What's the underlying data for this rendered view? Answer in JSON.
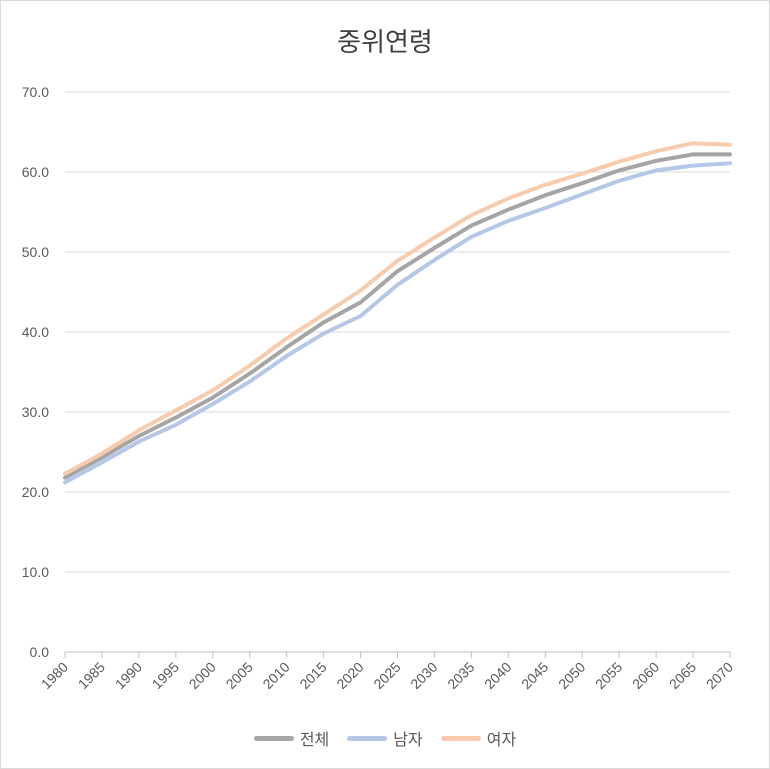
{
  "chart_data": {
    "type": "line",
    "title": "중위연령",
    "xlabel": "",
    "ylabel": "",
    "ylim": [
      0,
      70
    ],
    "xlim": [
      1980,
      2070
    ],
    "y_ticks": [
      "0.0",
      "10.0",
      "20.0",
      "30.0",
      "40.0",
      "50.0",
      "60.0",
      "70.0"
    ],
    "x_ticks": [
      "1980",
      "1985",
      "1990",
      "1995",
      "2000",
      "2005",
      "2010",
      "2015",
      "2020",
      "2025",
      "2030",
      "2035",
      "2040",
      "2045",
      "2050",
      "2055",
      "2060",
      "2065",
      "2070"
    ],
    "grid": "horizontal",
    "legend_position": "bottom",
    "x": [
      1980,
      1985,
      1990,
      1995,
      2000,
      2005,
      2010,
      2015,
      2020,
      2025,
      2030,
      2035,
      2040,
      2045,
      2050,
      2055,
      2060,
      2065,
      2070
    ],
    "series": [
      {
        "name": "전체",
        "color": "#a5a5a5",
        "values": [
          21.8,
          24.3,
          27.0,
          29.3,
          31.8,
          34.8,
          38.1,
          41.2,
          43.7,
          47.6,
          50.5,
          53.3,
          55.3,
          57.1,
          58.6,
          60.2,
          61.4,
          62.2,
          62.2
        ]
      },
      {
        "name": "남자",
        "color": "#b4c7e7",
        "values": [
          21.2,
          23.7,
          26.3,
          28.4,
          31.0,
          33.8,
          37.0,
          39.8,
          42.0,
          45.9,
          49.0,
          51.9,
          53.9,
          55.5,
          57.2,
          58.9,
          60.2,
          60.8,
          61.1
        ]
      },
      {
        "name": "여자",
        "color": "#f8cbad",
        "values": [
          22.3,
          24.8,
          27.7,
          30.2,
          32.7,
          35.8,
          39.2,
          42.2,
          45.2,
          48.9,
          51.8,
          54.6,
          56.7,
          58.4,
          59.8,
          61.3,
          62.6,
          63.6,
          63.4
        ]
      }
    ]
  }
}
